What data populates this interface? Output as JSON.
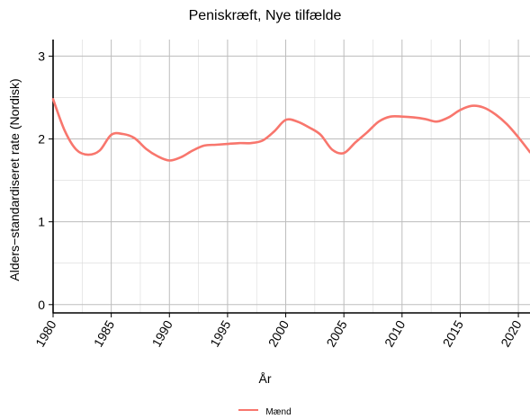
{
  "chart_data": {
    "type": "line",
    "title": "Peniskræft, Nye tilfælde",
    "xlabel": "År",
    "ylabel": "Alders−standardiseret rate (Nordisk)",
    "xlim": [
      1980,
      2021
    ],
    "ylim": [
      -0.1,
      3.2
    ],
    "x_ticks": [
      1980,
      1985,
      1990,
      1995,
      2000,
      2005,
      2010,
      2015,
      2020
    ],
    "x_tick_labels": [
      "1980",
      "1985",
      "1990",
      "1995",
      "2000",
      "2005",
      "2010",
      "2015",
      "2020"
    ],
    "y_ticks": [
      0,
      1,
      2,
      3
    ],
    "y_tick_labels": [
      "0",
      "1",
      "2",
      "3"
    ],
    "grid": true,
    "legend_position": "bottom",
    "series": [
      {
        "name": "Mænd",
        "color": "#f8766d",
        "x": [
          1980,
          1981,
          1982,
          1983,
          1984,
          1985,
          1986,
          1987,
          1988,
          1989,
          1990,
          1991,
          1992,
          1993,
          1994,
          1995,
          1996,
          1997,
          1998,
          1999,
          2000,
          2001,
          2002,
          2003,
          2004,
          2005,
          2006,
          2007,
          2008,
          2009,
          2010,
          2011,
          2012,
          2013,
          2014,
          2015,
          2016,
          2017,
          2018,
          2019,
          2020,
          2021
        ],
        "values": [
          2.48,
          2.1,
          1.87,
          1.81,
          1.86,
          2.05,
          2.06,
          2.01,
          1.88,
          1.79,
          1.74,
          1.78,
          1.86,
          1.92,
          1.93,
          1.94,
          1.95,
          1.95,
          1.98,
          2.09,
          2.23,
          2.21,
          2.14,
          2.05,
          1.87,
          1.83,
          1.96,
          2.08,
          2.21,
          2.27,
          2.27,
          2.26,
          2.24,
          2.21,
          2.26,
          2.35,
          2.4,
          2.38,
          2.3,
          2.18,
          2.02,
          1.84
        ]
      }
    ]
  }
}
